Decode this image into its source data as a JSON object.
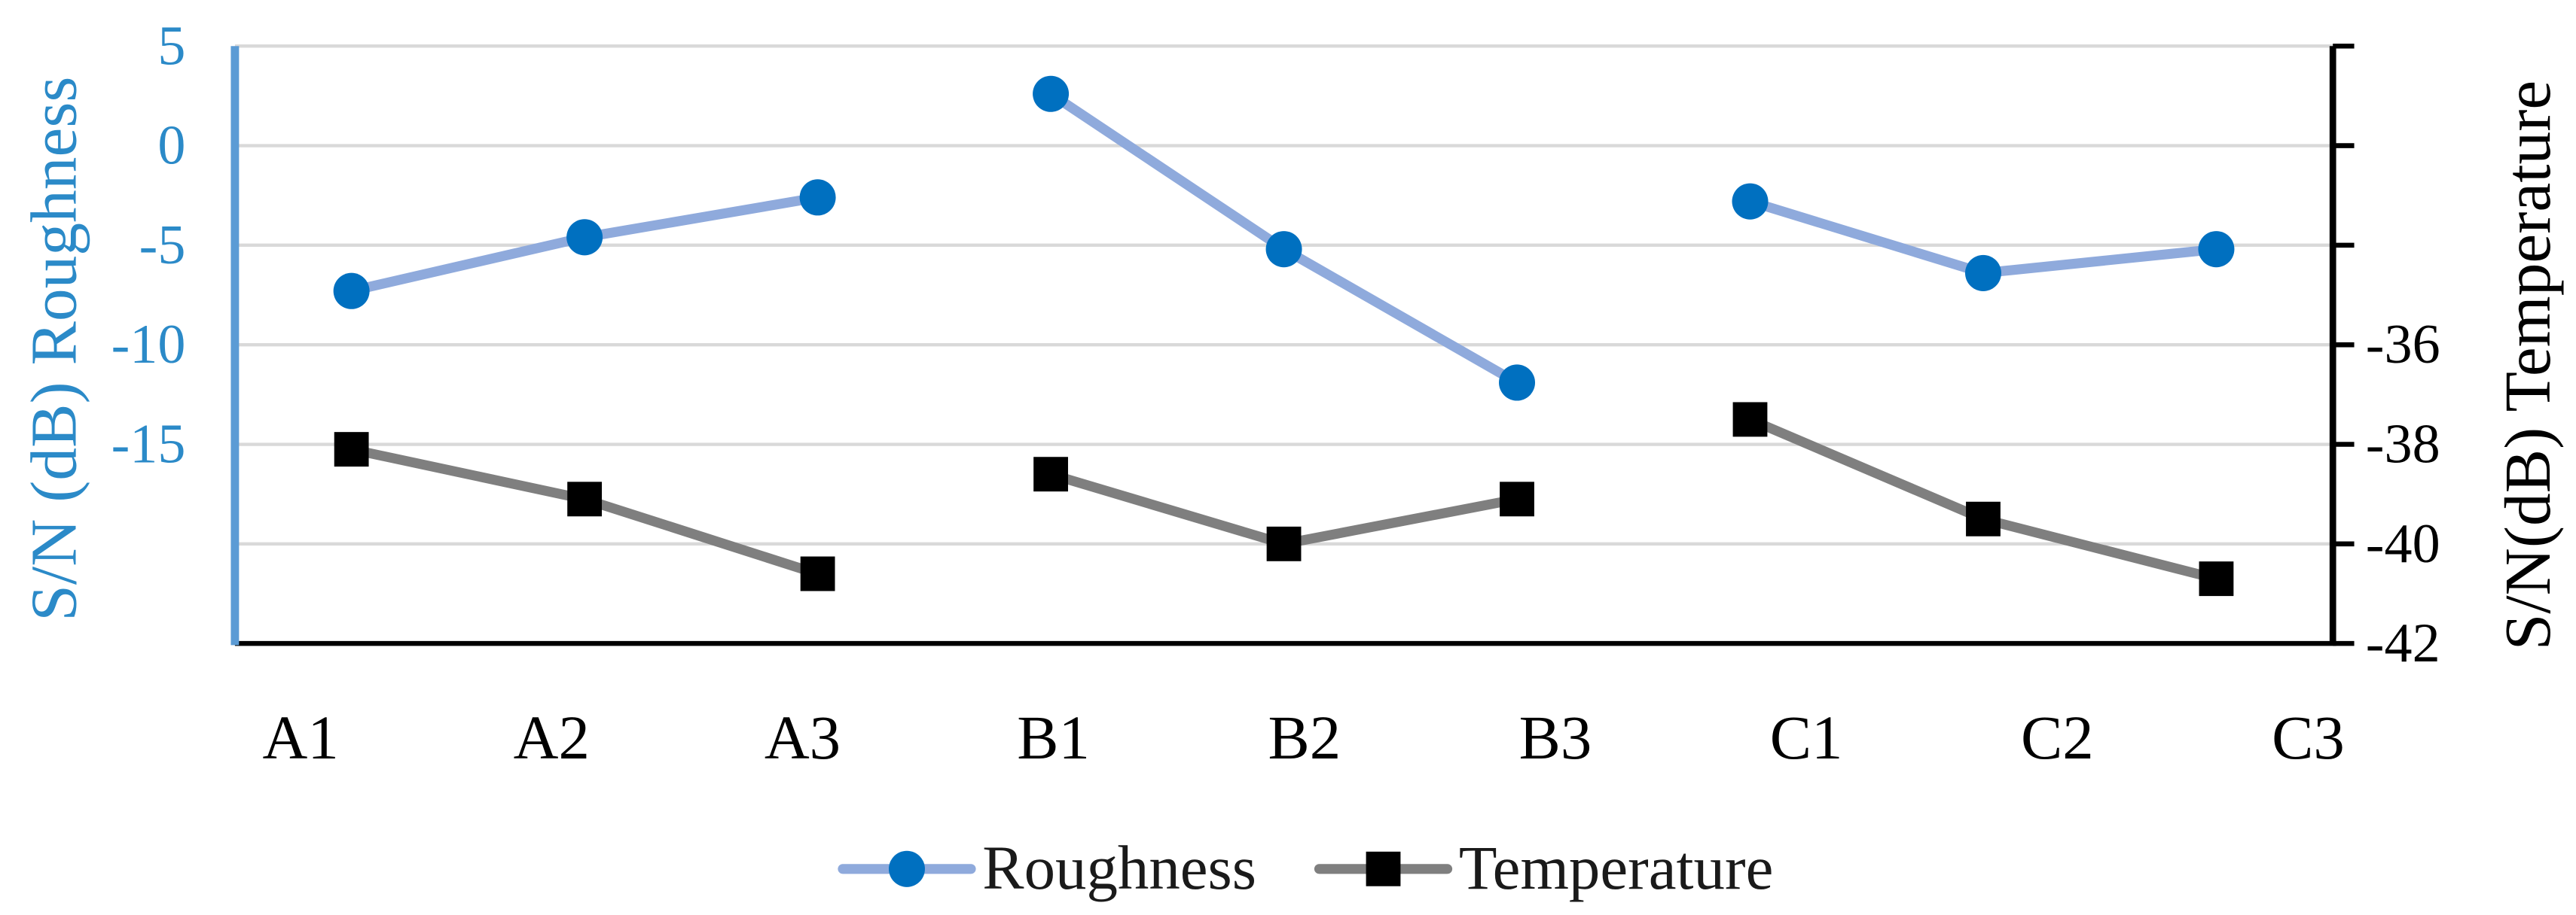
{
  "chart_data": {
    "type": "line",
    "categories": [
      "A1",
      "A2",
      "A3",
      "B1",
      "B2",
      "B3",
      "C1",
      "C2",
      "C3"
    ],
    "line_groups": [
      [
        "A1",
        "A2",
        "A3"
      ],
      [
        "B1",
        "B2",
        "B3"
      ],
      [
        "C1",
        "C2",
        "C3"
      ]
    ],
    "series": [
      {
        "name": "Roughness",
        "axis": "left",
        "values": [
          -7.3,
          -4.6,
          -2.6,
          2.6,
          -5.2,
          -11.9,
          -2.8,
          -6.4,
          -5.2
        ],
        "line_color": "#8FAADC",
        "marker": "circle",
        "marker_color": "#0070C0"
      },
      {
        "name": "Temperature",
        "axis": "right",
        "values": [
          -38.1,
          -39.1,
          -40.6,
          -38.6,
          -40.0,
          -39.1,
          -37.5,
          -39.5,
          -40.7
        ],
        "line_color": "#7F7F7F",
        "marker": "square",
        "marker_color": "#000000"
      }
    ],
    "left_axis": {
      "label": "S/N (dB) Roughness",
      "ylim": [
        -25,
        5
      ],
      "gridlines": [
        5,
        0,
        -5,
        -10,
        -15,
        -20
      ],
      "labeled_ticks": [
        5,
        0,
        -5,
        -10,
        -15
      ],
      "tick_labels": [
        "5",
        "0",
        "-5",
        "-10",
        "-15"
      ],
      "line_color": "#5B9BD5",
      "text_color": "#2B8AC8"
    },
    "right_axis": {
      "label": "S/N(dB) Temperature",
      "ylim": [
        -42,
        -30
      ],
      "ticks": [
        -30,
        -32,
        -34,
        -36,
        -38,
        -40,
        -42
      ],
      "labeled_ticks": [
        -36,
        -38,
        -40,
        -42
      ],
      "tick_labels": [
        "-36",
        "-38",
        "-40",
        "-42"
      ]
    },
    "grid": true,
    "legend": {
      "position": "bottom"
    }
  }
}
